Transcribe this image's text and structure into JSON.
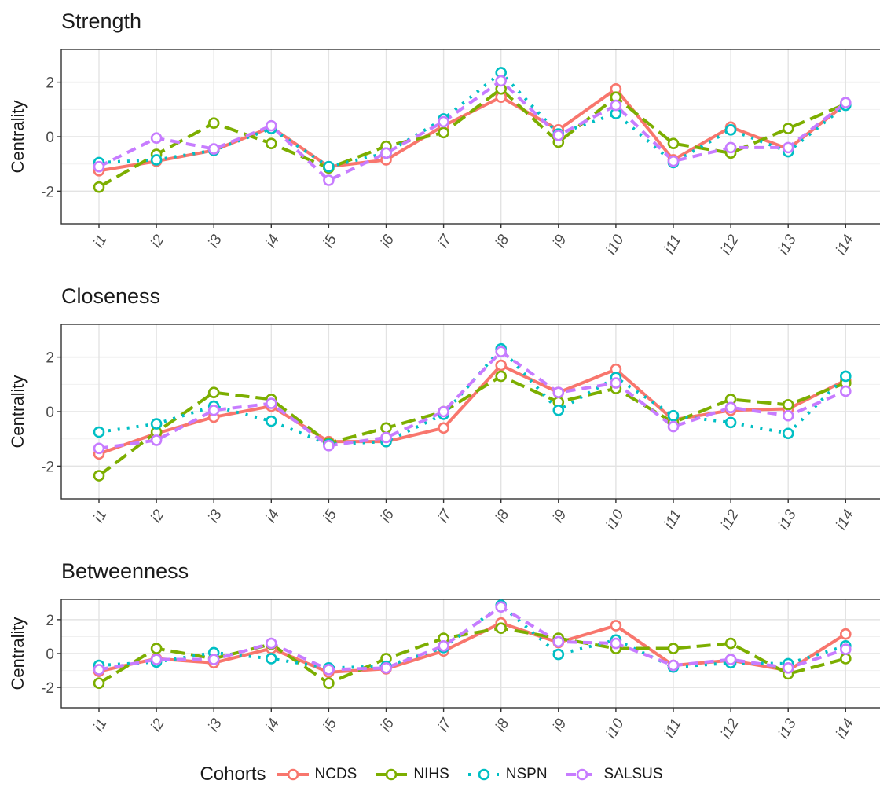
{
  "chart_data": [
    {
      "type": "line",
      "title": "Strength",
      "ylabel": "Centrality",
      "xlabel": "",
      "ylim": [
        -3.2,
        3.2
      ],
      "yticks": [
        -2,
        0,
        2
      ],
      "ytick_labels": [
        "-2",
        "0",
        "2"
      ],
      "categories": [
        "i1",
        "i2",
        "i3",
        "i4",
        "i5",
        "i6",
        "i7",
        "i8",
        "i9",
        "i10",
        "i11",
        "i12",
        "i13",
        "i14"
      ],
      "grid": true,
      "series": [
        {
          "name": "NCDS",
          "values": [
            -1.25,
            -0.9,
            -0.5,
            0.35,
            -1.1,
            -0.85,
            0.4,
            1.45,
            0.25,
            1.75,
            -0.85,
            0.35,
            -0.45,
            1.2
          ]
        },
        {
          "name": "NIHS",
          "values": [
            -1.85,
            -0.65,
            0.5,
            -0.25,
            -1.15,
            -0.35,
            0.15,
            1.75,
            -0.2,
            1.45,
            -0.25,
            -0.6,
            0.3,
            1.2
          ]
        },
        {
          "name": "NSPN",
          "values": [
            -0.95,
            -0.85,
            -0.5,
            0.3,
            -1.1,
            -0.6,
            0.65,
            2.35,
            0.1,
            0.85,
            -0.95,
            0.25,
            -0.55,
            1.15
          ]
        },
        {
          "name": "SALSUS",
          "values": [
            -1.1,
            -0.05,
            -0.45,
            0.4,
            -1.6,
            -0.6,
            0.55,
            2.05,
            0.05,
            1.15,
            -0.9,
            -0.4,
            -0.4,
            1.25
          ]
        }
      ]
    },
    {
      "type": "line",
      "title": "Closeness",
      "ylabel": "Centrality",
      "xlabel": "",
      "ylim": [
        -3.2,
        3.2
      ],
      "yticks": [
        -2,
        0,
        2
      ],
      "ytick_labels": [
        "-2",
        "0",
        "2"
      ],
      "categories": [
        "i1",
        "i2",
        "i3",
        "i4",
        "i5",
        "i6",
        "i7",
        "i8",
        "i9",
        "i10",
        "i11",
        "i12",
        "i13",
        "i14"
      ],
      "grid": true,
      "series": [
        {
          "name": "NCDS",
          "values": [
            -1.55,
            -0.8,
            -0.2,
            0.2,
            -1.1,
            -1.1,
            -0.6,
            1.7,
            0.7,
            1.55,
            -0.3,
            0.05,
            0.1,
            1.15
          ]
        },
        {
          "name": "NIHS",
          "values": [
            -2.35,
            -0.75,
            0.7,
            0.45,
            -1.15,
            -0.6,
            0.0,
            1.3,
            0.35,
            0.85,
            -0.4,
            0.45,
            0.25,
            1.05
          ]
        },
        {
          "name": "NSPN",
          "values": [
            -0.75,
            -0.45,
            0.2,
            -0.35,
            -1.2,
            -1.1,
            -0.1,
            2.3,
            0.05,
            1.25,
            -0.15,
            -0.4,
            -0.8,
            1.3
          ]
        },
        {
          "name": "SALSUS",
          "values": [
            -1.35,
            -1.05,
            0.05,
            0.3,
            -1.25,
            -0.95,
            0.0,
            2.2,
            0.7,
            1.05,
            -0.55,
            0.15,
            -0.15,
            0.75
          ]
        }
      ]
    },
    {
      "type": "line",
      "title": "Betweenness",
      "ylabel": "Centrality",
      "xlabel": "",
      "ylim": [
        -3.2,
        3.2
      ],
      "yticks": [
        -2,
        0,
        2
      ],
      "ytick_labels": [
        "-2",
        "0",
        "2"
      ],
      "categories": [
        "i1",
        "i2",
        "i3",
        "i4",
        "i5",
        "i6",
        "i7",
        "i8",
        "i9",
        "i10",
        "i11",
        "i12",
        "i13",
        "i14"
      ],
      "grid": true,
      "series": [
        {
          "name": "NCDS",
          "values": [
            -1.05,
            -0.3,
            -0.55,
            0.3,
            -1.1,
            -0.9,
            0.15,
            1.8,
            0.65,
            1.65,
            -0.7,
            -0.4,
            -1.0,
            1.15
          ]
        },
        {
          "name": "NIHS",
          "values": [
            -1.75,
            0.3,
            -0.3,
            0.55,
            -1.75,
            -0.3,
            0.9,
            1.5,
            0.9,
            0.3,
            0.3,
            0.6,
            -1.2,
            -0.3
          ]
        },
        {
          "name": "NSPN",
          "values": [
            -0.7,
            -0.5,
            0.05,
            -0.3,
            -0.85,
            -0.75,
            0.35,
            2.85,
            -0.05,
            0.8,
            -0.8,
            -0.55,
            -0.6,
            0.45
          ]
        },
        {
          "name": "SALSUS",
          "values": [
            -0.95,
            -0.35,
            -0.35,
            0.6,
            -0.95,
            -0.85,
            0.45,
            2.75,
            0.7,
            0.6,
            -0.7,
            -0.35,
            -0.85,
            0.25
          ]
        }
      ]
    }
  ],
  "legend": {
    "title": "Cohorts",
    "placement": "bottom",
    "items": [
      {
        "name": "NCDS",
        "color": "#F8766D",
        "dash": "solid"
      },
      {
        "name": "NIHS",
        "color": "#7CAE00",
        "dash": "longdash"
      },
      {
        "name": "NSPN",
        "color": "#00BFC4",
        "dash": "dotted"
      },
      {
        "name": "SALSUS",
        "color": "#C77CFF",
        "dash": "dash"
      }
    ]
  }
}
